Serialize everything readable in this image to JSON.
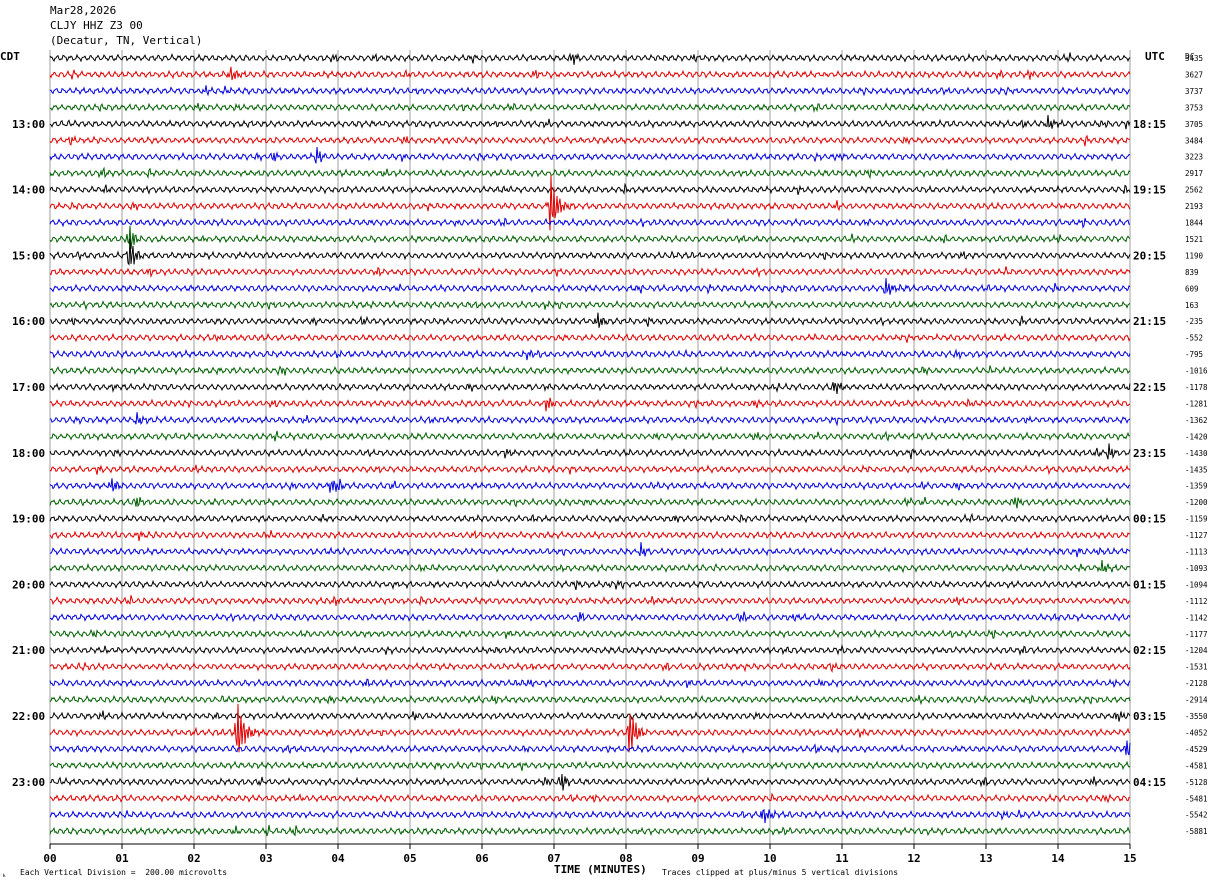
{
  "header": {
    "date": "Mar28,2026",
    "station": "CLJY HHZ Z3 00",
    "location": "(Decatur, TN, Vertical)"
  },
  "left_tz": "CDT",
  "right_tz": "UTC",
  "corner_label": "DC",
  "footer": {
    "scale_note": "Each Vertical Division =  200.00 microvolts",
    "clip_note": "Traces clipped at plus/minus 5 vertical divisions",
    "corner_mark": "ₖ"
  },
  "chart_data": {
    "type": "line",
    "title": "",
    "xlabel": "TIME (MINUTES)",
    "ylabel": "",
    "xlim": [
      0,
      15
    ],
    "x_ticks": [
      "00",
      "01",
      "02",
      "03",
      "04",
      "05",
      "06",
      "07",
      "08",
      "09",
      "10",
      "11",
      "12",
      "13",
      "14",
      "15"
    ],
    "grid": "vertical lines each minute",
    "trace_colors": [
      "#000000",
      "#e00000",
      "#0000e0",
      "#006000"
    ],
    "trace_count": 48,
    "trace_minutes": 15,
    "left_time_labels": [
      {
        "row": 4,
        "label": "13:00"
      },
      {
        "row": 8,
        "label": "14:00"
      },
      {
        "row": 12,
        "label": "15:00"
      },
      {
        "row": 16,
        "label": "16:00"
      },
      {
        "row": 20,
        "label": "17:00"
      },
      {
        "row": 24,
        "label": "18:00"
      },
      {
        "row": 28,
        "label": "19:00"
      },
      {
        "row": 32,
        "label": "20:00"
      },
      {
        "row": 36,
        "label": "21:00"
      },
      {
        "row": 40,
        "label": "22:00"
      },
      {
        "row": 44,
        "label": "23:00"
      }
    ],
    "right_time_labels": [
      {
        "row": 4,
        "label": "18:15"
      },
      {
        "row": 8,
        "label": "19:15"
      },
      {
        "row": 12,
        "label": "20:15"
      },
      {
        "row": 16,
        "label": "21:15"
      },
      {
        "row": 20,
        "label": "22:15"
      },
      {
        "row": 24,
        "label": "23:15"
      },
      {
        "row": 28,
        "label": "00:15"
      },
      {
        "row": 32,
        "label": "01:15"
      },
      {
        "row": 36,
        "label": "02:15"
      },
      {
        "row": 40,
        "label": "03:15"
      },
      {
        "row": 44,
        "label": "04:15"
      }
    ],
    "dc_offsets": [
      3435,
      3627,
      3737,
      3753,
      3705,
      3484,
      3223,
      2917,
      2562,
      2193,
      1844,
      1521,
      1190,
      839,
      609,
      163,
      -235,
      -552,
      -795,
      -1016,
      -1178,
      -1281,
      -1362,
      -1420,
      -1430,
      -1435,
      -1359,
      -1200,
      -1159,
      -1127,
      -1113,
      -1093,
      -1094,
      -1112,
      -1142,
      -1177,
      -1204,
      -1531,
      -2128,
      -2914,
      -3550,
      -4052,
      -4529,
      -4581,
      -5128,
      -5481,
      -5542,
      -5881
    ],
    "events": [
      {
        "row": 0,
        "minute": 7.25,
        "amplitude": 8
      },
      {
        "row": 1,
        "minute": 2.5,
        "amplitude": 8
      },
      {
        "row": 4,
        "minute": 13.85,
        "amplitude": 9
      },
      {
        "row": 6,
        "minute": 3.7,
        "amplitude": 10
      },
      {
        "row": 6,
        "minute": 3.1,
        "amplitude": 7
      },
      {
        "row": 9,
        "minute": 6.95,
        "amplitude": 34
      },
      {
        "row": 11,
        "minute": 1.1,
        "amplitude": 16
      },
      {
        "row": 12,
        "minute": 1.1,
        "amplitude": 20
      },
      {
        "row": 14,
        "minute": 11.6,
        "amplitude": 11
      },
      {
        "row": 16,
        "minute": 7.6,
        "amplitude": 8
      },
      {
        "row": 20,
        "minute": 10.9,
        "amplitude": 7
      },
      {
        "row": 21,
        "minute": 6.9,
        "amplitude": 9
      },
      {
        "row": 22,
        "minute": 1.2,
        "amplitude": 7
      },
      {
        "row": 24,
        "minute": 14.7,
        "amplitude": 10
      },
      {
        "row": 26,
        "minute": 3.9,
        "amplitude": 8
      },
      {
        "row": 26,
        "minute": 0.85,
        "amplitude": 7
      },
      {
        "row": 27,
        "minute": 1.2,
        "amplitude": 8
      },
      {
        "row": 27,
        "minute": 13.4,
        "amplitude": 8
      },
      {
        "row": 30,
        "minute": 8.2,
        "amplitude": 8
      },
      {
        "row": 31,
        "minute": 14.6,
        "amplitude": 7
      },
      {
        "row": 34,
        "minute": 7.35,
        "amplitude": 7
      },
      {
        "row": 41,
        "minute": 2.6,
        "amplitude": 34
      },
      {
        "row": 41,
        "minute": 8.05,
        "amplitude": 26
      },
      {
        "row": 42,
        "minute": 14.95,
        "amplitude": 10
      },
      {
        "row": 44,
        "minute": 7.1,
        "amplitude": 12
      },
      {
        "row": 46,
        "minute": 9.9,
        "amplitude": 9
      }
    ]
  }
}
